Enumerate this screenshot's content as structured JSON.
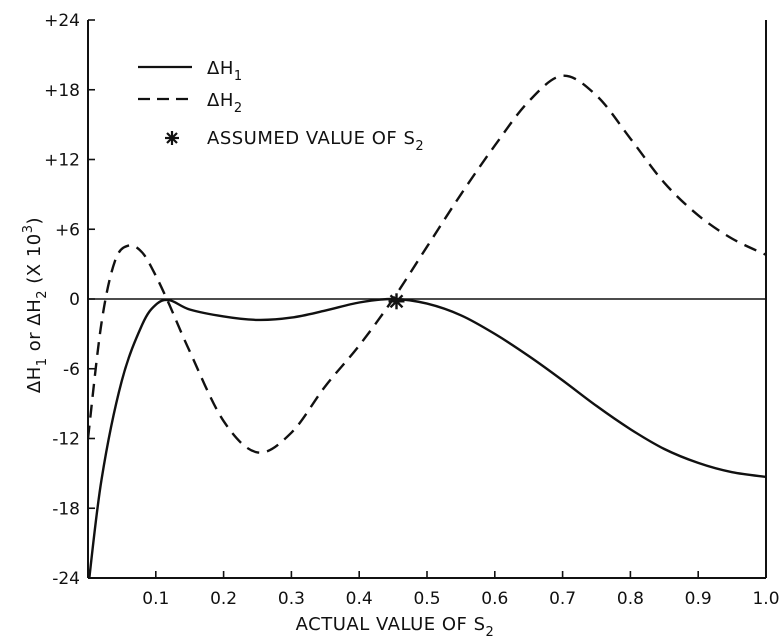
{
  "chart_data": {
    "type": "line",
    "title": "",
    "xlabel": {
      "text": "ACTUAL VALUE OF S",
      "sub": "2"
    },
    "ylabel": {
      "p1": "ΔH",
      "s1": "1",
      "p2": " or ΔH",
      "s2": "2",
      "p3": " (X 10",
      "sup": "3",
      "p4": ")"
    },
    "xlim": [
      0.0,
      1.0
    ],
    "ylim": [
      -24,
      24
    ],
    "xtick_labels": [
      "0.1",
      "0.2",
      "0.3",
      "0.4",
      "0.5",
      "0.6",
      "0.7",
      "0.8",
      "0.9",
      "1.0"
    ],
    "ytick_labels": [
      "-24",
      "-18",
      "-12",
      "-6",
      "0",
      "+6",
      "+12",
      "+18",
      "+24"
    ],
    "grid": false,
    "legend_position": "top-left",
    "series": [
      {
        "name": {
          "text": "ΔH",
          "sub": "1"
        },
        "style": "solid",
        "x": [
          0.0,
          0.02,
          0.05,
          0.08,
          0.1,
          0.12,
          0.15,
          0.2,
          0.25,
          0.3,
          0.35,
          0.4,
          0.45,
          0.5,
          0.55,
          0.6,
          0.65,
          0.7,
          0.75,
          0.8,
          0.85,
          0.9,
          0.95,
          1.0
        ],
        "y": [
          -25.0,
          -15.5,
          -7.0,
          -2.2,
          -0.5,
          -0.1,
          -0.9,
          -1.5,
          -1.8,
          -1.6,
          -1.0,
          -0.3,
          0.0,
          -0.4,
          -1.4,
          -3.0,
          -4.9,
          -7.0,
          -9.2,
          -11.2,
          -12.9,
          -14.1,
          -14.9,
          -15.3
        ]
      },
      {
        "name": {
          "text": "ΔH",
          "sub": "2"
        },
        "style": "dashed",
        "x": [
          0.0,
          0.02,
          0.04,
          0.06,
          0.08,
          0.1,
          0.12,
          0.15,
          0.2,
          0.25,
          0.3,
          0.35,
          0.4,
          0.45,
          0.5,
          0.55,
          0.6,
          0.65,
          0.7,
          0.75,
          0.8,
          0.85,
          0.9,
          0.95,
          1.0
        ],
        "y": [
          -12.0,
          -2.0,
          3.3,
          4.6,
          4.0,
          2.0,
          -0.5,
          -4.5,
          -10.5,
          -13.2,
          -11.5,
          -7.5,
          -4.0,
          0.0,
          4.5,
          9.0,
          13.2,
          17.0,
          19.2,
          17.5,
          13.8,
          10.0,
          7.2,
          5.2,
          3.8
        ]
      }
    ],
    "annotations": [
      {
        "marker": "asterisk",
        "x": 0.455,
        "y": -0.2,
        "label": {
          "text": "ASSUMED VALUE OF S",
          "sub": "2"
        }
      }
    ]
  }
}
